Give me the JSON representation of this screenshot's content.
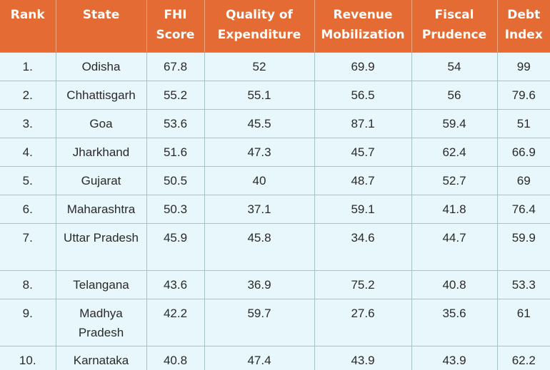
{
  "table": {
    "headers": [
      "Rank",
      "State",
      "FHI Score",
      "Quality of Expenditure",
      "Revenue Mobilization",
      "Fiscal Prudence",
      "Debt Index"
    ],
    "rows": [
      [
        "1.",
        "Odisha",
        "67.8",
        "52",
        "69.9",
        "54",
        "99"
      ],
      [
        "2.",
        "Chhattisgarh",
        "55.2",
        "55.1",
        "56.5",
        "56",
        "79.6"
      ],
      [
        "3.",
        "Goa",
        "53.6",
        "45.5",
        "87.1",
        "59.4",
        "51"
      ],
      [
        "4.",
        "Jharkhand",
        "51.6",
        "47.3",
        "45.7",
        "62.4",
        "66.9"
      ],
      [
        "5.",
        "Gujarat",
        "50.5",
        "40",
        "48.7",
        "52.7",
        "69"
      ],
      [
        "6.",
        "Maharashtra",
        "50.3",
        "37.1",
        "59.1",
        "41.8",
        "76.4"
      ],
      [
        "7.",
        "Uttar Pradesh",
        "45.9",
        "45.8",
        "34.6",
        "44.7",
        "59.9"
      ],
      [
        "8.",
        "Telangana",
        "43.6",
        "36.9",
        "75.2",
        "40.8",
        "53.3"
      ],
      [
        "9.",
        "Madhya Pradesh",
        "42.2",
        "59.7",
        "27.6",
        "35.6",
        "61"
      ],
      [
        "10.",
        "Karnataka",
        "40.8",
        "47.4",
        "43.9",
        "43.9",
        "62.2"
      ]
    ]
  },
  "colors": {
    "header_bg": "#e46b34",
    "header_text": "#ffffff",
    "row_bg": "#e7f7fb",
    "grid_line": "#a9c1c8"
  }
}
